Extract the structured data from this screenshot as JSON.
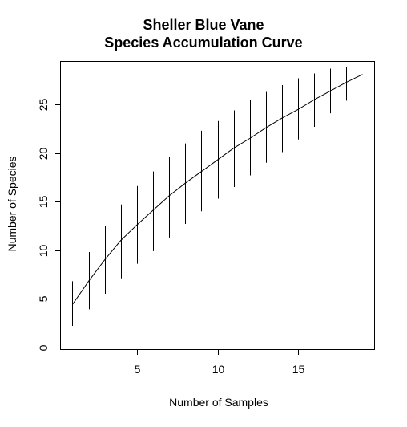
{
  "chart_data": {
    "type": "line",
    "title": "Sheller Blue Vane",
    "subtitle": "Species Accumulation Curve",
    "xlabel": "Number of Samples",
    "ylabel": "Number of Species",
    "xlim": [
      0.28,
      19.72
    ],
    "ylim": [
      -0.2,
      29.4
    ],
    "x_ticks": [
      "5",
      "10",
      "15"
    ],
    "x_tick_values": [
      5,
      10,
      15
    ],
    "y_ticks": [
      "0",
      "5",
      "10",
      "15",
      "20",
      "25"
    ],
    "y_tick_values": [
      0,
      5,
      10,
      15,
      20,
      25
    ],
    "grid": false,
    "series": [
      {
        "x": [
          1,
          2,
          3,
          4,
          5,
          6,
          7,
          8,
          9,
          10,
          11,
          12,
          13,
          14,
          15,
          16,
          17,
          18,
          19
        ],
        "values": [
          4.4,
          6.8,
          9.0,
          11.0,
          12.6,
          14.1,
          15.6,
          16.9,
          18.1,
          19.3,
          20.5,
          21.5,
          22.6,
          23.6,
          24.5,
          25.5,
          26.4,
          27.3,
          28.1
        ],
        "error_low": [
          2.2,
          3.9,
          5.5,
          7.1,
          8.6,
          9.9,
          11.3,
          12.7,
          14.0,
          15.3,
          16.5,
          17.7,
          19.0,
          20.1,
          21.4,
          22.7,
          24.1,
          25.4,
          null
        ],
        "error_high": [
          6.8,
          9.8,
          12.5,
          14.7,
          16.6,
          18.1,
          19.6,
          21.0,
          22.3,
          23.3,
          24.4,
          25.5,
          26.3,
          27.0,
          27.7,
          28.2,
          28.7,
          28.9,
          null
        ]
      }
    ]
  }
}
